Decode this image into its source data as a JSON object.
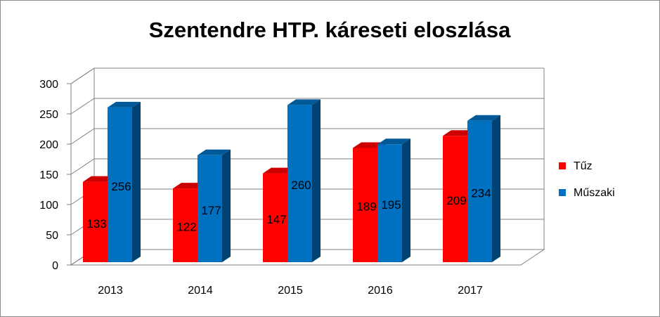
{
  "chart_data": {
    "type": "bar",
    "title": "Szentendre HTP. káreseti eloszlása",
    "categories": [
      "2013",
      "2014",
      "2015",
      "2016",
      "2017"
    ],
    "series": [
      {
        "name": "Tűz",
        "color": "#ff0000",
        "values": [
          133,
          122,
          147,
          189,
          209
        ]
      },
      {
        "name": "Műszaki",
        "color": "#0070c0",
        "values": [
          256,
          177,
          260,
          195,
          234
        ]
      }
    ],
    "ylim": [
      0,
      300
    ],
    "yticks": [
      "0",
      "50",
      "100",
      "150",
      "200",
      "250",
      "300"
    ],
    "grid": true,
    "legend": "right",
    "style": "3d-clustered-column"
  }
}
